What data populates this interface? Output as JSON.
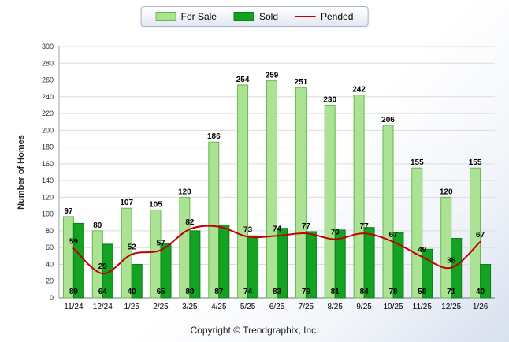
{
  "legend": {
    "items": [
      {
        "label": "For Sale",
        "type": "bar",
        "color": "#ABE293",
        "border": "#67B750"
      },
      {
        "label": "Sold",
        "type": "bar",
        "color": "#14A222",
        "border": "#0C7E17"
      },
      {
        "label": "Pended",
        "type": "line",
        "color": "#C00000"
      }
    ]
  },
  "chart_data": {
    "type": "bar",
    "title": "",
    "xlabel": "",
    "ylabel": "Number of Homes",
    "ylim": [
      0,
      300
    ],
    "ytick_step": 20,
    "grid": true,
    "legend_position": "top",
    "categories": [
      "11/24",
      "12/24",
      "1/25",
      "2/25",
      "3/25",
      "4/25",
      "5/25",
      "6/25",
      "7/25",
      "8/25",
      "9/25",
      "10/25",
      "11/25",
      "12/25",
      "1/26"
    ],
    "series": [
      {
        "name": "For Sale",
        "type": "bar",
        "color": "#ABE293",
        "border": "#67B750",
        "values": [
          97,
          80,
          107,
          105,
          120,
          186,
          254,
          259,
          251,
          230,
          242,
          206,
          155,
          120,
          155
        ]
      },
      {
        "name": "Sold",
        "type": "bar",
        "color": "#14A222",
        "border": "#0C7E17",
        "values": [
          89,
          64,
          40,
          65,
          80,
          87,
          74,
          83,
          79,
          81,
          84,
          78,
          58,
          71,
          40
        ]
      },
      {
        "name": "Pended",
        "type": "line",
        "color": "#C00000",
        "values": [
          59,
          29,
          52,
          57,
          82,
          85,
          73,
          74,
          77,
          70,
          77,
          67,
          49,
          36,
          67
        ],
        "labels": [
          "59",
          "29",
          "52",
          "57",
          "82",
          "",
          "73",
          "74",
          "77",
          "70",
          "77",
          "67",
          "49",
          "36",
          "67"
        ]
      }
    ]
  },
  "footer": {
    "copyright": "Copyright © Trendgraphix, Inc."
  }
}
